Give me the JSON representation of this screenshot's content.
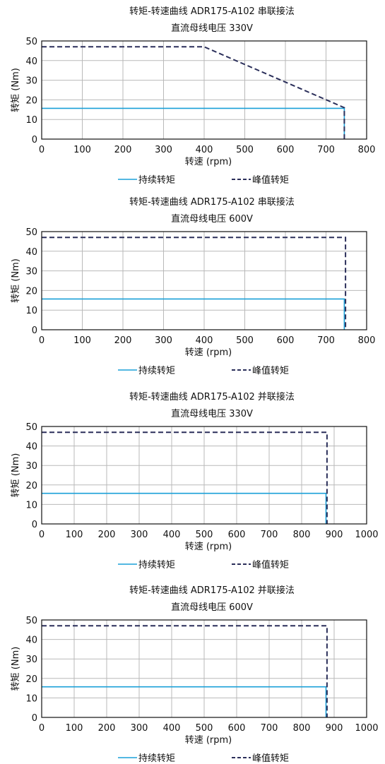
{
  "colors": {
    "continuous": "#1aa0d8",
    "peak": "#2b2f5a",
    "grid": "#b9b9b9"
  },
  "chart_data": [
    {
      "type": "line",
      "title": "转矩-转速曲线 ADR175-A102 串联接法",
      "subtitle": "直流母线电压 330V",
      "xlabel": "转速 (rpm)",
      "ylabel": "转矩 (Nm)",
      "xlim": [
        0,
        800
      ],
      "ylim": [
        0,
        50
      ],
      "xticks": [
        0,
        100,
        200,
        300,
        400,
        500,
        600,
        700,
        800
      ],
      "yticks": [
        0,
        10,
        20,
        30,
        40,
        50
      ],
      "grid": true,
      "legend_position": "bottom",
      "series": [
        {
          "name": "持续转矩",
          "style": "solid",
          "x": [
            0,
            745,
            745
          ],
          "y": [
            15.7,
            15.7,
            0
          ]
        },
        {
          "name": "峰值转矩",
          "style": "dashed",
          "x": [
            0,
            400,
            745,
            745
          ],
          "y": [
            47,
            47,
            16,
            0
          ]
        }
      ]
    },
    {
      "type": "line",
      "title": "转矩-转速曲线 ADR175-A102 串联接法",
      "subtitle": "直流母线电压 600V",
      "xlabel": "转速 (rpm)",
      "ylabel": "转矩 (Nm)",
      "xlim": [
        0,
        800
      ],
      "ylim": [
        0,
        50
      ],
      "xticks": [
        0,
        100,
        200,
        300,
        400,
        500,
        600,
        700,
        800
      ],
      "yticks": [
        0,
        10,
        20,
        30,
        40,
        50
      ],
      "grid": true,
      "legend_position": "bottom",
      "series": [
        {
          "name": "持续转矩",
          "style": "solid",
          "x": [
            0,
            745,
            745
          ],
          "y": [
            15.7,
            15.7,
            0
          ]
        },
        {
          "name": "峰值转矩",
          "style": "dashed",
          "x": [
            0,
            748,
            748
          ],
          "y": [
            47,
            47,
            0
          ]
        }
      ]
    },
    {
      "type": "line",
      "title": "转矩-转速曲线 ADR175-A102 并联接法",
      "subtitle": "直流母线电压 330V",
      "xlabel": "转速 (rpm)",
      "ylabel": "转矩 (Nm)",
      "xlim": [
        0,
        1000
      ],
      "ylim": [
        0,
        50
      ],
      "xticks": [
        0,
        100,
        200,
        300,
        400,
        500,
        600,
        700,
        800,
        900,
        1000
      ],
      "yticks": [
        0,
        10,
        20,
        30,
        40,
        50
      ],
      "grid": true,
      "legend_position": "bottom",
      "series": [
        {
          "name": "持续转矩",
          "style": "solid",
          "x": [
            0,
            875,
            875
          ],
          "y": [
            15.7,
            15.7,
            0
          ]
        },
        {
          "name": "峰值转矩",
          "style": "dashed",
          "x": [
            0,
            878,
            878
          ],
          "y": [
            47,
            47,
            0
          ]
        }
      ]
    },
    {
      "type": "line",
      "title": "转矩-转速曲线 ADR175-A102 并联接法",
      "subtitle": "直流母线电压 600V",
      "xlabel": "转速 (rpm)",
      "ylabel": "转矩 (Nm)",
      "xlim": [
        0,
        1000
      ],
      "ylim": [
        0,
        50
      ],
      "xticks": [
        0,
        100,
        200,
        300,
        400,
        500,
        600,
        700,
        800,
        900,
        1000
      ],
      "yticks": [
        0,
        10,
        20,
        30,
        40,
        50
      ],
      "grid": true,
      "legend_position": "bottom",
      "series": [
        {
          "name": "持续转矩",
          "style": "solid",
          "x": [
            0,
            875,
            875
          ],
          "y": [
            15.7,
            15.7,
            0
          ]
        },
        {
          "name": "峰值转矩",
          "style": "dashed",
          "x": [
            0,
            878,
            878
          ],
          "y": [
            47,
            47,
            0
          ]
        }
      ]
    }
  ]
}
